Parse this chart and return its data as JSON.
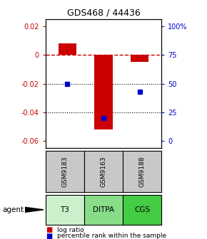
{
  "title": "GDS468 / 44436",
  "samples": [
    "GSM9183",
    "GSM9163",
    "GSM9188"
  ],
  "agents": [
    "T3",
    "DITPA",
    "CGS"
  ],
  "log_ratios": [
    0.008,
    -0.052,
    -0.005
  ],
  "percentile_values": [
    0.5,
    0.2,
    0.43
  ],
  "bar_color": "#cc0000",
  "square_color": "#0000cc",
  "ylim_left": [
    -0.065,
    0.025
  ],
  "yticks_left": [
    -0.06,
    -0.04,
    -0.02,
    0.0,
    0.02
  ],
  "ytick_labels_left": [
    "-0.06",
    "-0.04",
    "-0.02",
    "0",
    "0.02"
  ],
  "yticks_right_pct": [
    0.0,
    0.25,
    0.5,
    0.75,
    1.0
  ],
  "ytick_labels_right": [
    "0",
    "25",
    "50",
    "75",
    "100%"
  ],
  "dotted_lines": [
    -0.02,
    -0.04
  ],
  "gray_color": "#c8c8c8",
  "green_colors": [
    "#ccf0cc",
    "#88dd88",
    "#44cc44"
  ],
  "bar_width": 0.5
}
